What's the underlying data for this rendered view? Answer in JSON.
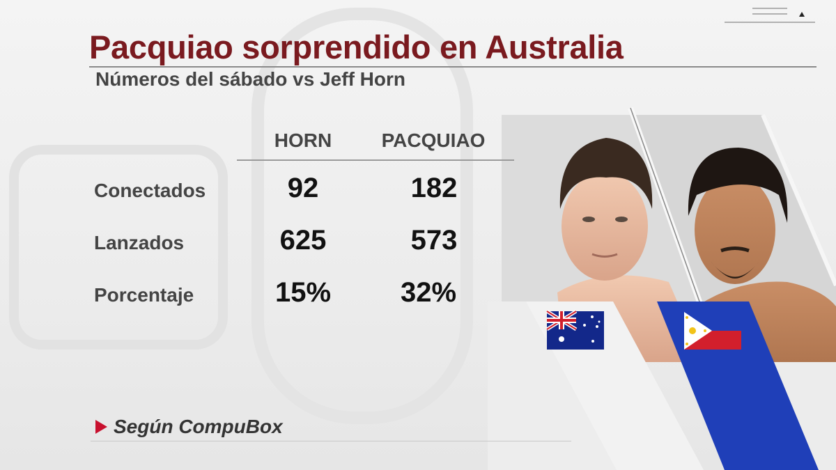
{
  "header": {
    "title": "Pacquiao sorprendido en Australia",
    "subtitle": "Números del sábado vs Jeff Horn"
  },
  "table": {
    "columns": [
      "HORN",
      "PACQUIAO"
    ],
    "rows": [
      {
        "label": "Conectados",
        "values": [
          "92",
          "182"
        ]
      },
      {
        "label": "Lanzados",
        "values": [
          "625",
          "573"
        ]
      },
      {
        "label": "Porcentaje",
        "values": [
          "15%",
          "32%"
        ]
      }
    ]
  },
  "footer": {
    "source": "Según CompuBox",
    "icon": "play-triangle-icon"
  },
  "fighters": [
    {
      "name": "Horn",
      "flag": "australia-flag-icon"
    },
    {
      "name": "Pacquiao",
      "flag": "philippines-flag-icon"
    }
  ],
  "colors": {
    "title": "#7a1a1f",
    "accent_red": "#c8102e",
    "stripe_blue": "#1f3fb8"
  }
}
